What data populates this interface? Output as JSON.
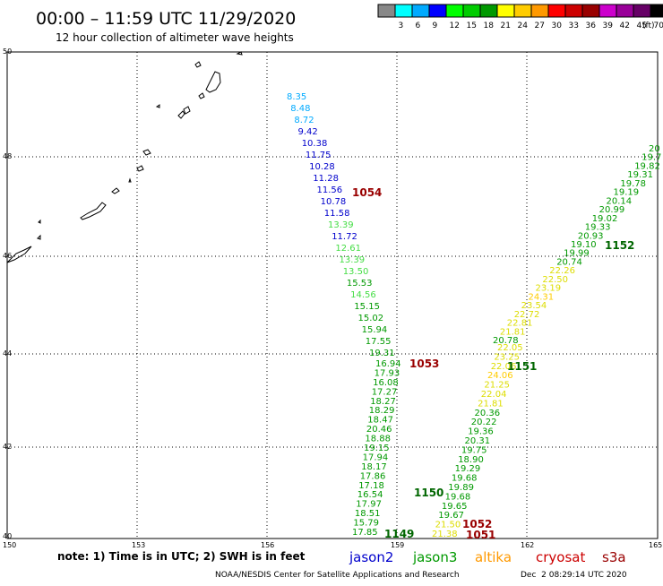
{
  "header": {
    "title": "00:00 – 11:59 UTC 11/29/2020",
    "subtitle": "12 hour collection of altimeter wave heights"
  },
  "legend": {
    "unit": "(ft)",
    "levels": [
      {
        "label": "3",
        "color": "#00ffff"
      },
      {
        "label": "6",
        "color": "#00aaff"
      },
      {
        "label": "9",
        "color": "#0000ff"
      },
      {
        "label": "12",
        "color": "#00ff00"
      },
      {
        "label": "15",
        "color": "#00cc00"
      },
      {
        "label": "18",
        "color": "#009900"
      },
      {
        "label": "21",
        "color": "#ffff00"
      },
      {
        "label": "24",
        "color": "#ffcc00"
      },
      {
        "label": "27",
        "color": "#ff9900"
      },
      {
        "label": "30",
        "color": "#ff0000"
      },
      {
        "label": "33",
        "color": "#cc0000"
      },
      {
        "label": "36",
        "color": "#990000"
      },
      {
        "label": "39",
        "color": "#cc00cc"
      },
      {
        "label": "42",
        "color": "#990099"
      },
      {
        "label": "45",
        "color": "#660066"
      },
      {
        "label": "70",
        "color": "#000000"
      }
    ]
  },
  "axes": {
    "lon_labels": [
      "150",
      "153",
      "156",
      "159",
      "162",
      "165"
    ],
    "lat_labels": [
      "50",
      "48",
      "46",
      "44",
      "42",
      "40"
    ]
  },
  "tracks": [
    {
      "id": "1054",
      "color": "#990000",
      "points": [
        {
          "v": "8.35",
          "c": "#00aaff"
        },
        {
          "v": "8.48",
          "c": "#00aaff"
        },
        {
          "v": "8.72",
          "c": "#00aaff"
        },
        {
          "v": "9.42",
          "c": "#0000cc"
        },
        {
          "v": "10.38",
          "c": "#0000cc"
        },
        {
          "v": "11.75",
          "c": "#0000cc"
        },
        {
          "v": "10.28",
          "c": "#0000cc"
        },
        {
          "v": "11.28",
          "c": "#0000cc"
        },
        {
          "v": "11.56",
          "c": "#0000cc"
        },
        {
          "v": "10.78",
          "c": "#0000cc"
        },
        {
          "v": "11.58",
          "c": "#0000cc"
        },
        {
          "v": "13.39",
          "c": "#44dd44"
        },
        {
          "v": "11.72",
          "c": "#0000cc"
        },
        {
          "v": "12.61",
          "c": "#44dd44"
        },
        {
          "v": "13.39",
          "c": "#44dd44"
        },
        {
          "v": "13.50",
          "c": "#44dd44"
        },
        {
          "v": "15.53",
          "c": "#009900"
        },
        {
          "v": "14.56",
          "c": "#44dd44"
        },
        {
          "v": "15.15",
          "c": "#009900"
        },
        {
          "v": "15.02",
          "c": "#009900"
        },
        {
          "v": "15.94",
          "c": "#009900"
        },
        {
          "v": "17.55",
          "c": "#009900"
        },
        {
          "v": "19.31",
          "c": "#009900"
        }
      ]
    },
    {
      "id": "1053",
      "color": "#990000",
      "points": [
        {
          "v": "16.94",
          "c": "#009900"
        },
        {
          "v": "17.93",
          "c": "#009900"
        },
        {
          "v": "16.08",
          "c": "#009900"
        },
        {
          "v": "17.27",
          "c": "#009900"
        },
        {
          "v": "18.27",
          "c": "#009900"
        },
        {
          "v": "18.29",
          "c": "#009900"
        },
        {
          "v": "18.47",
          "c": "#009900"
        },
        {
          "v": "20.46",
          "c": "#009900"
        },
        {
          "v": "18.88",
          "c": "#009900"
        },
        {
          "v": "19.15",
          "c": "#009900"
        },
        {
          "v": "17.94",
          "c": "#009900"
        },
        {
          "v": "18.17",
          "c": "#009900"
        },
        {
          "v": "17.86",
          "c": "#009900"
        },
        {
          "v": "17.18",
          "c": "#009900"
        },
        {
          "v": "16.54",
          "c": "#009900"
        },
        {
          "v": "17.97",
          "c": "#009900"
        },
        {
          "v": "18.51",
          "c": "#009900"
        },
        {
          "v": "15.79",
          "c": "#009900"
        },
        {
          "v": "17.85",
          "c": "#009900"
        }
      ]
    },
    {
      "id": "1152",
      "color": "#006600",
      "points": [
        {
          "v": "20",
          "c": "#009900"
        },
        {
          "v": "19.7",
          "c": "#009900"
        },
        {
          "v": "19.82",
          "c": "#009900"
        },
        {
          "v": "19.31",
          "c": "#009900"
        },
        {
          "v": "19.78",
          "c": "#009900"
        },
        {
          "v": "19.19",
          "c": "#009900"
        },
        {
          "v": "20.14",
          "c": "#009900"
        },
        {
          "v": "20.99",
          "c": "#009900"
        },
        {
          "v": "19.02",
          "c": "#009900"
        },
        {
          "v": "19.33",
          "c": "#009900"
        },
        {
          "v": "20.93",
          "c": "#009900"
        },
        {
          "v": "19.10",
          "c": "#009900"
        },
        {
          "v": "19.99",
          "c": "#009900"
        },
        {
          "v": "20.74",
          "c": "#009900"
        },
        {
          "v": "22.26",
          "c": "#dddd00"
        },
        {
          "v": "22.50",
          "c": "#dddd00"
        },
        {
          "v": "23.19",
          "c": "#dddd00"
        },
        {
          "v": "24.31",
          "c": "#ffcc00"
        },
        {
          "v": "23.54",
          "c": "#dddd00"
        },
        {
          "v": "22.72",
          "c": "#dddd00"
        },
        {
          "v": "22.81",
          "c": "#dddd00"
        },
        {
          "v": "21.81",
          "c": "#dddd00"
        },
        {
          "v": "20.78",
          "c": "#009900"
        }
      ]
    },
    {
      "id": "1151",
      "color": "#006600",
      "points": [
        {
          "v": "22.05",
          "c": "#dddd00"
        },
        {
          "v": "23.25",
          "c": "#dddd00"
        },
        {
          "v": "22.06",
          "c": "#dddd00"
        },
        {
          "v": "24.06",
          "c": "#ffcc00"
        },
        {
          "v": "21.25",
          "c": "#dddd00"
        },
        {
          "v": "22.04",
          "c": "#dddd00"
        },
        {
          "v": "21.81",
          "c": "#dddd00"
        },
        {
          "v": "20.36",
          "c": "#009900"
        },
        {
          "v": "20.22",
          "c": "#009900"
        },
        {
          "v": "19.36",
          "c": "#009900"
        },
        {
          "v": "20.31",
          "c": "#009900"
        },
        {
          "v": "19.75",
          "c": "#009900"
        },
        {
          "v": "18.90",
          "c": "#009900"
        },
        {
          "v": "19.29",
          "c": "#009900"
        },
        {
          "v": "19.68",
          "c": "#009900"
        },
        {
          "v": "19.89",
          "c": "#009900"
        },
        {
          "v": "19.68",
          "c": "#009900"
        },
        {
          "v": "19.65",
          "c": "#009900"
        },
        {
          "v": "19.67",
          "c": "#009900"
        },
        {
          "v": "21.50",
          "c": "#dddd00"
        },
        {
          "v": "21.38",
          "c": "#dddd00"
        }
      ]
    }
  ],
  "track_labels": [
    {
      "text": "1054",
      "color": "#990000"
    },
    {
      "text": "1053",
      "color": "#990000"
    },
    {
      "text": "1152",
      "color": "#006600"
    },
    {
      "text": "1151",
      "color": "#006600"
    },
    {
      "text": "1150",
      "color": "#006600"
    },
    {
      "text": "1149",
      "color": "#006600"
    },
    {
      "text": "1052",
      "color": "#990000"
    },
    {
      "text": "1051",
      "color": "#990000"
    }
  ],
  "footer": {
    "note": "note: 1) Time is in UTC; 2) SWH is in feet",
    "satellites": [
      {
        "name": "jason2",
        "color": "#0000cc"
      },
      {
        "name": "jason3",
        "color": "#009900"
      },
      {
        "name": "altika",
        "color": "#ff9900"
      },
      {
        "name": "cryosat",
        "color": "#cc0000"
      },
      {
        "name": "s3a",
        "color": "#990000"
      }
    ],
    "credit": "NOAA/NESDIS Center for Satellite Applications and Research",
    "timestamp": "Dec  2 08:29:14 UTC 2020"
  }
}
